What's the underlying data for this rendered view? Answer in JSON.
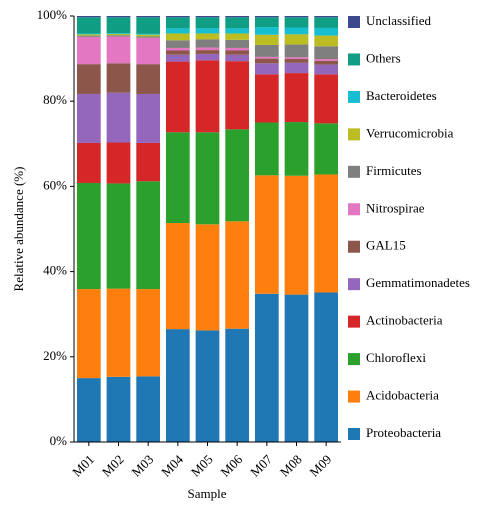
{
  "chart_data": {
    "type": "stacked_bar",
    "x_label": "Sample",
    "y_label": "Relative abundance (%)",
    "categories": [
      "M01",
      "M02",
      "M03",
      "M04",
      "M05",
      "M06",
      "M07",
      "M08",
      "M09"
    ],
    "ylim": [
      0,
      100
    ],
    "yticks": [
      {
        "value": 0,
        "label": "0%"
      },
      {
        "value": 20,
        "label": "20%"
      },
      {
        "value": 40,
        "label": "40%"
      },
      {
        "value": 60,
        "label": "60%"
      },
      {
        "value": 80,
        "label": "80%"
      },
      {
        "value": 100,
        "label": "100%"
      }
    ],
    "legend": "right",
    "series": [
      {
        "name": "Proteobacteria",
        "color": "#1f77b4",
        "values": [
          15.0,
          15.3,
          15.4,
          26.5,
          26.2,
          26.6,
          34.8,
          34.6,
          35.1
        ]
      },
      {
        "name": "Acidobacteria",
        "color": "#ff7f0e",
        "values": [
          20.9,
          20.7,
          20.5,
          24.9,
          24.9,
          25.2,
          27.8,
          27.9,
          27.7
        ]
      },
      {
        "name": "Chloroflexi",
        "color": "#2ca02c",
        "values": [
          24.9,
          24.7,
          25.3,
          21.3,
          21.6,
          21.6,
          12.4,
          12.6,
          12.0
        ]
      },
      {
        "name": "Actinobacteria",
        "color": "#d62728",
        "values": [
          9.4,
          9.6,
          9.0,
          16.6,
          16.9,
          16.0,
          11.3,
          11.5,
          11.5
        ]
      },
      {
        "name": "Gemmatimonadetes",
        "color": "#9467bd",
        "values": [
          11.5,
          11.7,
          11.5,
          1.6,
          1.5,
          1.5,
          2.6,
          2.4,
          2.3
        ]
      },
      {
        "name": "GAL15",
        "color": "#8c564b",
        "values": [
          7.0,
          6.9,
          7.0,
          1.0,
          0.9,
          1.0,
          1.1,
          0.9,
          0.9
        ]
      },
      {
        "name": "Nitrospirae",
        "color": "#e377c2",
        "values": [
          6.4,
          6.3,
          6.2,
          0.6,
          0.6,
          0.6,
          0.4,
          0.4,
          0.4
        ]
      },
      {
        "name": "Firmicutes",
        "color": "#7f7f7f",
        "values": [
          0.3,
          0.3,
          0.3,
          1.8,
          1.9,
          1.9,
          2.8,
          3.0,
          3.0
        ]
      },
      {
        "name": "Verrucomicrobia",
        "color": "#bcbd22",
        "values": [
          0.3,
          0.3,
          0.4,
          1.6,
          1.4,
          1.5,
          2.4,
          2.4,
          2.5
        ]
      },
      {
        "name": "Bacteroidetes",
        "color": "#17becf",
        "values": [
          0.2,
          0.2,
          0.2,
          1.2,
          1.2,
          1.2,
          1.8,
          1.6,
          1.8
        ]
      },
      {
        "name": "Others",
        "color": "#0f9e84",
        "values": [
          3.8,
          3.7,
          3.9,
          2.6,
          2.6,
          2.6,
          2.3,
          2.4,
          2.5
        ]
      },
      {
        "name": "Unclassified",
        "color": "#3a4a8c",
        "values": [
          0.3,
          0.3,
          0.3,
          0.3,
          0.3,
          0.3,
          0.3,
          0.3,
          0.3
        ]
      }
    ]
  }
}
